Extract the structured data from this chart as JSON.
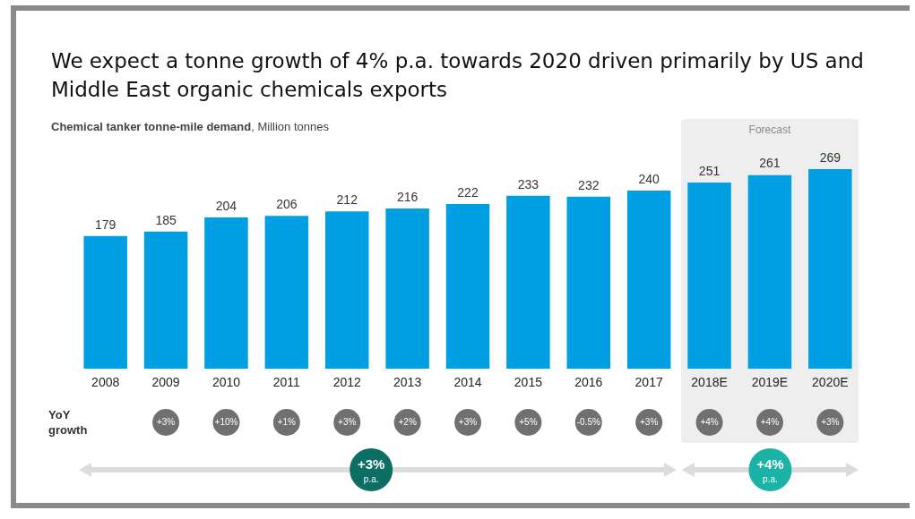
{
  "chart_data": {
    "type": "bar",
    "title": "We expect a tonne growth of 4% p.a. towards 2020 driven primarily by US and Middle East organic chemicals exports",
    "subtitle": "Chemical tanker tonne-mile demand, Million tonnes",
    "categories": [
      "2008",
      "2009",
      "2010",
      "2011",
      "2012",
      "2013",
      "2014",
      "2015",
      "2016",
      "2017",
      "2018E",
      "2019E",
      "2020E"
    ],
    "values": [
      179,
      185,
      204,
      206,
      212,
      216,
      222,
      233,
      232,
      240,
      251,
      261,
      269
    ],
    "color": "#009fe3",
    "data_labels": true,
    "tick_labels": "x",
    "grid": false,
    "legend": false,
    "bands": [
      {
        "axis": "x",
        "from": "2018E",
        "to": "2020E",
        "label": "Forecast",
        "color": "#eeeeee"
      }
    ],
    "annotations": [
      "YoY growth",
      "+3%",
      "+10%",
      "+1%",
      "+3%",
      "+2%",
      "+3%",
      "+5%",
      "-0.5%",
      "+3%",
      "+4%",
      "+4%",
      "+3%",
      "+3% p.a.",
      "+4% p.a."
    ]
  }
}
